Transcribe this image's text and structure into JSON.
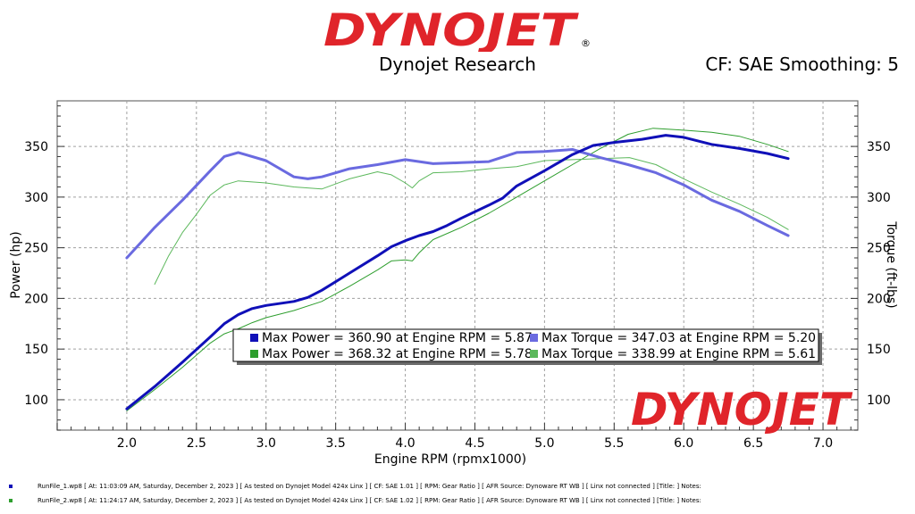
{
  "header": {
    "logo_text": "DYNOJET",
    "logo_reg": "®",
    "company": "Dynojet Research",
    "cf_info": "CF: SAE Smoothing: 5"
  },
  "colors": {
    "run1_power": "#1010b8",
    "run1_torque": "#6a6ae0",
    "run2_power": "#2e9e2e",
    "run2_torque": "#5cb85c",
    "logo_red": "#e0242a",
    "grid": "#a0a0a0"
  },
  "footer": {
    "rows": [
      {
        "color": "#1010b8",
        "text": "RunFile_1.wp8  [ At: 11:03:09 AM, Saturday, December 2, 2023 ]  [ As tested on Dynojet Model 424x Linx ]  [ CF: SAE 1.01 ]  [ RPM: Gear Ratio ]  [ AFR Source: Dynoware RT WB ]  [ Linx not connected ]  [Title: ]   Notes:"
      },
      {
        "color": "#2e9e2e",
        "text": "RunFile_2.wp8  [ At: 11:24:17 AM, Saturday, December 2, 2023 ]  [ As tested on Dynojet Model 424x Linx ]  [ CF: SAE 1.02 ]  [ RPM: Gear Ratio ]  [ AFR Source: Dynoware RT WB ]  [ Linx not connected ]  [Title: ]   Notes:"
      }
    ]
  },
  "chart_data": {
    "type": "line",
    "xlabel": "Engine RPM (rpmx1000)",
    "ylabel": "Power (hp)",
    "y2label": "Torque (ft-lbs)",
    "xlim": [
      1.5,
      7.25
    ],
    "ylim": [
      70,
      395
    ],
    "x_ticks": [
      "2.0",
      "2.5",
      "3.0",
      "3.5",
      "4.0",
      "4.5",
      "5.0",
      "5.5",
      "6.0",
      "6.5",
      "7.0"
    ],
    "y_ticks": [
      "100",
      "150",
      "200",
      "250",
      "300",
      "350"
    ],
    "y2_ticks": [
      "100",
      "150",
      "200",
      "250",
      "300",
      "350"
    ],
    "watermark": "DYNOJET",
    "legend": [
      {
        "name": "Max Power = 360.90 at Engine RPM = 5.87",
        "color": "#1010b8"
      },
      {
        "name": "Max Torque = 347.03 at Engine RPM = 5.20",
        "color": "#6a6ae0"
      },
      {
        "name": "Max Power = 368.32 at Engine RPM = 5.78",
        "color": "#2e9e2e"
      },
      {
        "name": "Max Torque = 338.99 at Engine RPM = 5.61",
        "color": "#5cb85c"
      }
    ],
    "series": [
      {
        "name": "Run 1 Power",
        "axis": "left",
        "color": "#1010b8",
        "width": 3,
        "x": [
          2.0,
          2.2,
          2.4,
          2.6,
          2.7,
          2.8,
          2.9,
          3.0,
          3.2,
          3.3,
          3.4,
          3.6,
          3.8,
          3.9,
          4.0,
          4.1,
          4.2,
          4.3,
          4.4,
          4.6,
          4.7,
          4.8,
          5.0,
          5.2,
          5.35,
          5.5,
          5.7,
          5.87,
          6.0,
          6.2,
          6.4,
          6.6,
          6.75
        ],
        "values": [
          91,
          113,
          137,
          162,
          175,
          184,
          190,
          193,
          197,
          201,
          208,
          225,
          242,
          251,
          257,
          262,
          266,
          272,
          279,
          292,
          299,
          311,
          326,
          342,
          351,
          354,
          357,
          361,
          359,
          352,
          348,
          343,
          338
        ]
      },
      {
        "name": "Run 1 Torque",
        "axis": "right",
        "color": "#6a6ae0",
        "width": 3,
        "x": [
          2.0,
          2.2,
          2.4,
          2.6,
          2.7,
          2.8,
          2.85,
          3.0,
          3.2,
          3.3,
          3.4,
          3.6,
          3.8,
          4.0,
          4.2,
          4.4,
          4.6,
          4.8,
          5.0,
          5.2,
          5.4,
          5.6,
          5.8,
          6.0,
          6.2,
          6.4,
          6.6,
          6.75
        ],
        "values": [
          240,
          270,
          297,
          326,
          340,
          344,
          342,
          336,
          320,
          318,
          320,
          328,
          332,
          337,
          333,
          334,
          335,
          344,
          345,
          347,
          339,
          332,
          324,
          312,
          297,
          286,
          272,
          262
        ]
      },
      {
        "name": "Run 2 Power",
        "axis": "left",
        "color": "#2e9e2e",
        "width": 1,
        "x": [
          2.0,
          2.2,
          2.4,
          2.6,
          2.7,
          2.8,
          2.9,
          3.0,
          3.2,
          3.4,
          3.6,
          3.8,
          3.9,
          4.0,
          4.05,
          4.1,
          4.2,
          4.4,
          4.6,
          4.8,
          5.0,
          5.2,
          5.4,
          5.6,
          5.78,
          6.0,
          6.2,
          6.4,
          6.6,
          6.75
        ],
        "values": [
          89,
          110,
          132,
          156,
          165,
          170,
          176,
          181,
          188,
          197,
          212,
          228,
          237,
          238,
          237,
          245,
          258,
          270,
          284,
          300,
          316,
          332,
          348,
          362,
          368,
          366,
          364,
          360,
          352,
          345
        ]
      },
      {
        "name": "Run 2 Torque",
        "axis": "right",
        "color": "#5cb85c",
        "width": 1,
        "x": [
          2.2,
          2.3,
          2.4,
          2.5,
          2.6,
          2.7,
          2.8,
          3.0,
          3.2,
          3.4,
          3.6,
          3.8,
          3.9,
          4.0,
          4.05,
          4.1,
          4.2,
          4.4,
          4.6,
          4.8,
          5.0,
          5.2,
          5.4,
          5.61,
          5.8,
          6.0,
          6.2,
          6.4,
          6.6,
          6.75
        ],
        "values": [
          214,
          242,
          265,
          283,
          302,
          312,
          316,
          314,
          310,
          308,
          318,
          325,
          322,
          314,
          309,
          316,
          324,
          325,
          328,
          330,
          336,
          337,
          338,
          339,
          332,
          318,
          305,
          293,
          280,
          268
        ]
      }
    ]
  }
}
